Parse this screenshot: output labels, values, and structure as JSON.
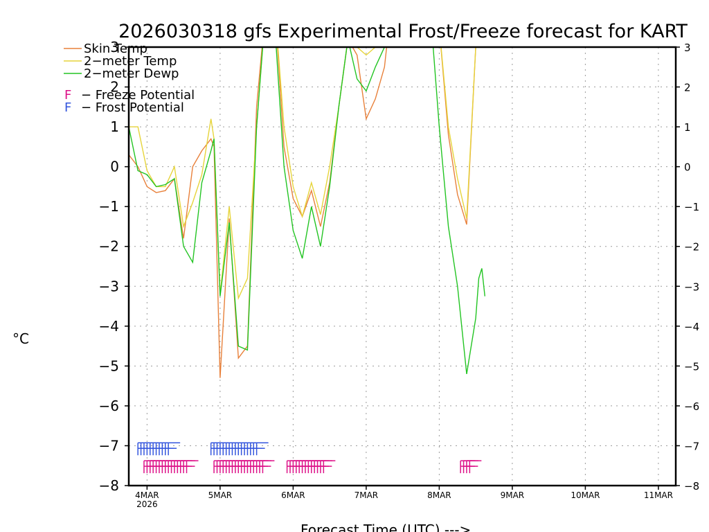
{
  "chart_data": {
    "type": "line",
    "title": "2026030318 gfs Experimental Frost/Freeze forecast for KART",
    "xlabel": "Forecast Time (UTC) --->",
    "ylabel": "°C",
    "ylim": [
      -8,
      3
    ],
    "yticks": [
      3,
      2,
      1,
      0,
      -1,
      -2,
      -3,
      -4,
      -5,
      -6,
      -7,
      -8
    ],
    "ytick_labels": [
      "3",
      "2",
      "1",
      "0",
      "−1",
      "−2",
      "−3",
      "−4",
      "−5",
      "−6",
      "−7",
      "−8"
    ],
    "x_units": "forecast hours from 2026-03-03 18Z",
    "xlim": [
      0,
      194
    ],
    "xticks": [
      {
        "hour": 6,
        "label": "4MAR",
        "sublabel": "2026"
      },
      {
        "hour": 30,
        "label": "5MAR",
        "sublabel": ""
      },
      {
        "hour": 54,
        "label": "6MAR",
        "sublabel": ""
      },
      {
        "hour": 78,
        "label": "7MAR",
        "sublabel": ""
      },
      {
        "hour": 102,
        "label": "8MAR",
        "sublabel": ""
      },
      {
        "hour": 126,
        "label": "9MAR",
        "sublabel": ""
      },
      {
        "hour": 150,
        "label": "10MAR",
        "sublabel": ""
      },
      {
        "hour": 174,
        "label": "11MAR",
        "sublabel": ""
      }
    ],
    "grid": true,
    "legend_position": "top-left",
    "series": [
      {
        "name": "Skin Temp",
        "color": "#e8803a",
        "x": [
          0,
          3,
          6,
          9,
          12,
          15,
          18,
          21,
          24,
          27,
          28,
          30,
          33,
          36,
          39,
          42,
          45,
          48,
          51,
          54,
          57,
          60,
          63,
          66,
          69,
          72,
          75,
          78,
          81,
          84,
          85,
          96,
          99,
          102,
          105,
          108,
          111,
          114
        ],
        "y": [
          0.3,
          0.0,
          -0.5,
          -0.65,
          -0.6,
          -0.3,
          -1.8,
          0.0,
          0.4,
          0.7,
          0.5,
          -5.3,
          -1.3,
          -4.8,
          -4.5,
          1.5,
          4.0,
          4.0,
          0.5,
          -0.8,
          -1.25,
          -0.6,
          -1.5,
          -0.4,
          1.5,
          3.2,
          2.8,
          1.2,
          1.7,
          2.5,
          3.2,
          4.0,
          4.0,
          3.5,
          0.8,
          -0.7,
          -1.45,
          3.0
        ]
      },
      {
        "name": "2-meter Temp",
        "color": "#e6d43a",
        "x": [
          0,
          3,
          6,
          9,
          12,
          15,
          18,
          21,
          24,
          27,
          28,
          30,
          33,
          36,
          39,
          42,
          45,
          48,
          51,
          54,
          57,
          60,
          63,
          66,
          69,
          72,
          75,
          78,
          81,
          84,
          85,
          96,
          99,
          102,
          105,
          108,
          111,
          114
        ],
        "y": [
          1.0,
          1.0,
          -0.1,
          -0.5,
          -0.5,
          0.0,
          -1.5,
          -0.9,
          -0.2,
          1.2,
          0.7,
          -3.2,
          -1.0,
          -3.3,
          -2.8,
          1.0,
          4.0,
          4.0,
          1.0,
          -0.5,
          -1.25,
          -0.4,
          -1.2,
          0.0,
          1.5,
          3.2,
          3.0,
          2.8,
          3.0,
          3.2,
          3.5,
          4.0,
          4.0,
          3.5,
          1.0,
          -0.3,
          -1.3,
          3.0
        ]
      },
      {
        "name": "2-meter Dewp",
        "color": "#22c422",
        "x": [
          0,
          3,
          6,
          9,
          12,
          15,
          18,
          21,
          24,
          27,
          28,
          30,
          33,
          36,
          39,
          42,
          45,
          48,
          51,
          54,
          57,
          60,
          63,
          66,
          69,
          72,
          75,
          78,
          81,
          84,
          85,
          96,
          99,
          102,
          105,
          108,
          111,
          114,
          115,
          116,
          117
        ],
        "y": [
          1.0,
          -0.1,
          -0.2,
          -0.5,
          -0.45,
          -0.3,
          -2.0,
          -2.4,
          -0.4,
          0.4,
          0.7,
          -3.25,
          -1.4,
          -4.5,
          -4.6,
          1.0,
          4.0,
          3.5,
          0.0,
          -1.6,
          -2.3,
          -1.0,
          -2.0,
          -0.5,
          1.5,
          3.2,
          2.2,
          1.9,
          2.5,
          3.0,
          3.3,
          4.0,
          4.0,
          1.0,
          -1.5,
          -3.0,
          -5.2,
          -3.8,
          -2.8,
          -2.55,
          -3.25
        ]
      }
    ],
    "markers": [
      {
        "name": "Frost Potential",
        "glyph": "F",
        "color": "#3355dd",
        "value": -7.1,
        "hours": [
          3,
          4,
          5,
          6,
          7,
          8,
          9,
          10,
          11,
          12,
          13,
          27,
          28,
          29,
          30,
          31,
          32,
          33,
          34,
          35,
          36,
          37,
          38,
          39,
          40,
          41,
          42
        ]
      },
      {
        "name": "Freeze Potential",
        "glyph": "F",
        "color": "#dd1188",
        "value": -7.55,
        "hours": [
          5,
          6,
          7,
          8,
          9,
          10,
          11,
          12,
          13,
          14,
          15,
          16,
          17,
          18,
          19,
          28,
          29,
          30,
          31,
          32,
          33,
          34,
          35,
          36,
          37,
          38,
          39,
          40,
          41,
          42,
          43,
          44,
          52,
          53,
          54,
          55,
          56,
          57,
          58,
          59,
          60,
          61,
          62,
          63,
          64,
          109,
          110,
          111,
          112
        ]
      }
    ],
    "legend": [
      {
        "label": "Skin Temp",
        "color": "#e8803a",
        "style": "line"
      },
      {
        "label": "2−meter Temp",
        "color": "#e6d43a",
        "style": "line"
      },
      {
        "label": "2−meter Dewp",
        "color": "#22c422",
        "style": "line"
      },
      {
        "label": "F − Freeze Potential",
        "glyph": "F",
        "text": "− Freeze Potential",
        "color": "#dd1188",
        "style": "glyph"
      },
      {
        "label": "F − Frost Potential",
        "glyph": "F",
        "text": "− Frost Potential",
        "color": "#3355dd",
        "style": "glyph"
      }
    ]
  }
}
